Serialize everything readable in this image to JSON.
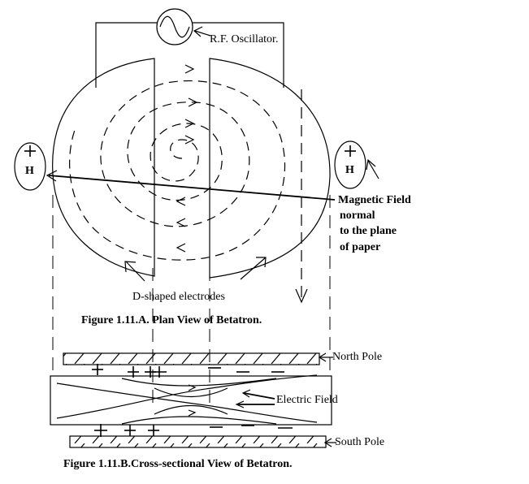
{
  "plan_view": {
    "oscillator_label": "R.F. Oscillator.",
    "h_left": "H",
    "h_right": "H",
    "magnetic_field": [
      "Magnetic Field",
      "normal",
      "to the plane",
      "of paper"
    ],
    "electrodes_label": "D-shaped electrodes",
    "caption": "Figure 1.11.A. Plan View of Betatron."
  },
  "cross_section": {
    "north_pole": "North Pole",
    "south_pole": "South Pole",
    "electric_field": "Electric Field",
    "caption": "Figure 1.11.B.Cross-sectional View of Betatron."
  }
}
